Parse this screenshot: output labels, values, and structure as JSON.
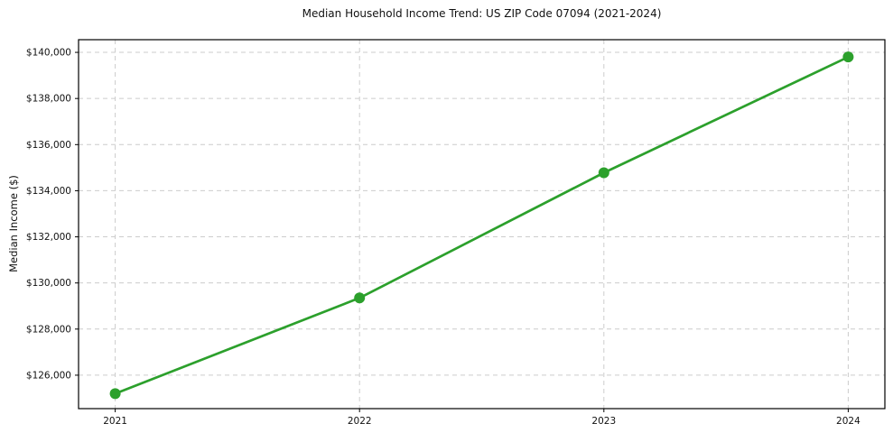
{
  "chart_data": {
    "type": "line",
    "title": "Median Household Income Trend: US ZIP Code 07094 (2021-2024)",
    "xlabel": "",
    "ylabel": "Median Income ($)",
    "x": [
      2021,
      2022,
      2023,
      2024
    ],
    "series": [
      {
        "name": "Median Household Income",
        "values": [
          125200,
          129350,
          134780,
          139800
        ],
        "color": "#2ca02c",
        "marker": "circle"
      }
    ],
    "xticks": [
      {
        "value": 2021,
        "label": "2021"
      },
      {
        "value": 2022,
        "label": "2022"
      },
      {
        "value": 2023,
        "label": "2023"
      },
      {
        "value": 2024,
        "label": "2024"
      }
    ],
    "yticks": [
      {
        "value": 126000,
        "label": "$126,000"
      },
      {
        "value": 128000,
        "label": "$128,000"
      },
      {
        "value": 130000,
        "label": "$130,000"
      },
      {
        "value": 132000,
        "label": "$132,000"
      },
      {
        "value": 134000,
        "label": "$134,000"
      },
      {
        "value": 136000,
        "label": "$136,000"
      },
      {
        "value": 138000,
        "label": "$138,000"
      },
      {
        "value": 140000,
        "label": "$140,000"
      }
    ],
    "xlim": [
      2020.85,
      2024.15
    ],
    "ylim": [
      124550,
      140550
    ],
    "grid": {
      "show": true,
      "style": "dashed",
      "color": "#cccccc"
    },
    "frame_color": "#000000",
    "background": "#ffffff",
    "legend": "none"
  }
}
